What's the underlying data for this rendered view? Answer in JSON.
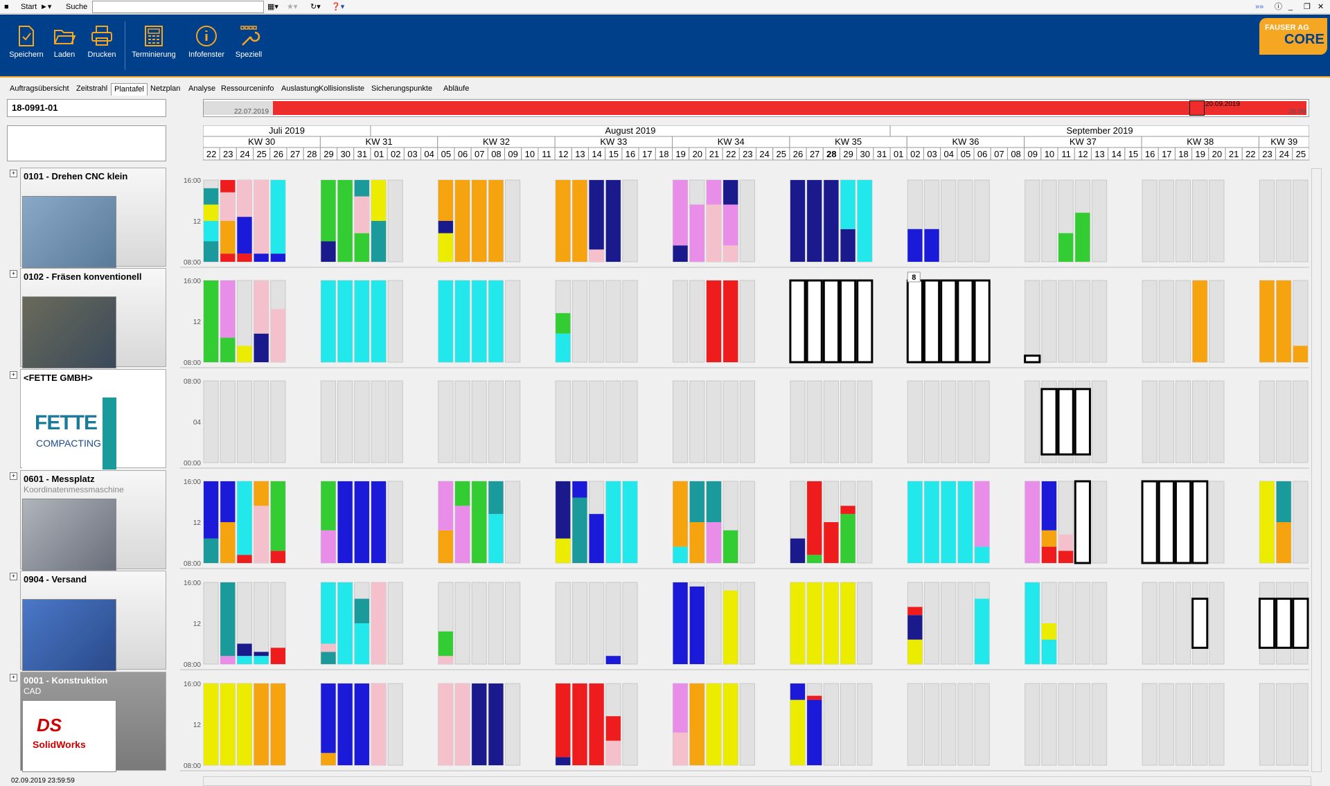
{
  "topbar": {
    "start_label": "Start",
    "search_label": "Suche",
    "search_value": ""
  },
  "ribbon": {
    "buttons": [
      {
        "label": "Speichern",
        "icon": "save-icon"
      },
      {
        "label": "Laden",
        "icon": "folder-open-icon"
      },
      {
        "label": "Drucken",
        "icon": "printer-icon"
      },
      {
        "label": "Terminierung",
        "icon": "calculator-icon"
      },
      {
        "label": "Infofenster",
        "icon": "info-icon"
      },
      {
        "label": "Speziell",
        "icon": "wrench-icon"
      }
    ],
    "logo": {
      "line1": "FAUSER AG",
      "line2": "CORE"
    }
  },
  "tabs": [
    "Auftragsübersicht",
    "Zeitstrahl",
    "Plantafel",
    "Netzplan",
    "Analyse",
    "Ressourceninfo",
    "Auslastung",
    "Kollisionsliste",
    "Sicherungspunkte",
    "Abläufe"
  ],
  "active_tab": "Plantafel",
  "order": {
    "number": "18-0991-01"
  },
  "timeline": {
    "start": "22.07.2019",
    "marker": "20.09.2019",
    "end": "26.09"
  },
  "calendar": {
    "months": [
      "Juli 2019",
      "August 2019",
      "September 2019"
    ],
    "weeks": [
      "KW 30",
      "KW 31",
      "KW 32",
      "KW 33",
      "KW 34",
      "KW 35",
      "KW 36",
      "KW 37",
      "KW 38",
      "KW 39"
    ],
    "days": [
      "22",
      "23",
      "24",
      "25",
      "26",
      "27",
      "28",
      "29",
      "30",
      "31",
      "01",
      "02",
      "03",
      "04",
      "05",
      "06",
      "07",
      "08",
      "09",
      "10",
      "11",
      "12",
      "13",
      "14",
      "15",
      "16",
      "17",
      "18",
      "19",
      "20",
      "21",
      "22",
      "23",
      "24",
      "25",
      "26",
      "27",
      "28",
      "29",
      "30",
      "31",
      "01",
      "02",
      "03",
      "04",
      "05",
      "06",
      "07",
      "08",
      "09",
      "10",
      "11",
      "12",
      "13",
      "14",
      "15",
      "16",
      "17",
      "18",
      "19",
      "20",
      "21",
      "22",
      "23",
      "24",
      "25"
    ],
    "today_index": 37
  },
  "resources": [
    {
      "title": "0101 - Drehen CNC klein",
      "subtitle": "",
      "axis": [
        "16:00",
        "12",
        "08:00"
      ]
    },
    {
      "title": "0102 - Fräsen konventionell",
      "subtitle": "",
      "axis": [
        "16:00",
        "12",
        "08:00"
      ],
      "badge": "8"
    },
    {
      "title": "<FETTE GMBH>",
      "subtitle": "",
      "axis": [
        "08:00",
        "04",
        "00:00"
      ],
      "logo1": "FETTE",
      "logo2": "COMPACTING"
    },
    {
      "title": "0601 - Messplatz",
      "subtitle": "Koordinatenmessmaschine",
      "axis": [
        "16:00",
        "12",
        "08:00"
      ]
    },
    {
      "title": "0904 - Versand",
      "subtitle": "",
      "axis": [
        "16:00",
        "12",
        "08:00"
      ]
    },
    {
      "title": "0001 - Konstruktion",
      "subtitle": "CAD",
      "axis": [
        "16:00",
        "12",
        "08:00"
      ],
      "logo1": "SolidWorks"
    }
  ],
  "colors": {
    "red": "#ee1c1c",
    "orange": "#f5a40f",
    "yellow": "#ecec00",
    "blue": "#1a1ad8",
    "navy": "#1a1a8c",
    "cyan": "#22e8ec",
    "teal": "#1a9a9a",
    "green": "#33cc33",
    "pink": "#f4c0cc",
    "violet": "#e88ee8",
    "grey": "#e1e1e1"
  },
  "status": {
    "timestamp": "02.09.2019 23:59:59"
  }
}
